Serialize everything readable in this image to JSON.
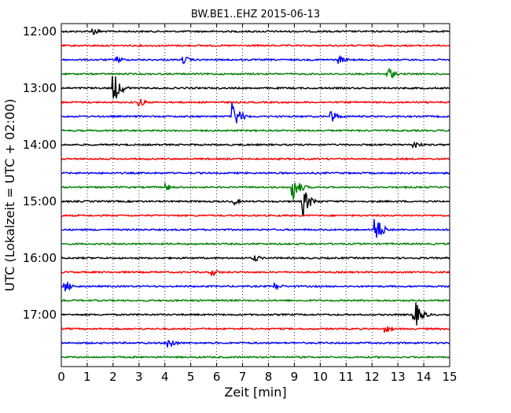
{
  "chart_data": {
    "type": "line",
    "title": "BW.BE1..EHZ 2015-06-13",
    "xlabel": "Zeit  [min]",
    "ylabel": "UTC (Lokalzeit = UTC + 02:00)",
    "xlim": [
      0,
      15
    ],
    "x_ticks": [
      0,
      1,
      2,
      3,
      4,
      5,
      6,
      7,
      8,
      9,
      10,
      11,
      12,
      13,
      14,
      15
    ],
    "y_tick_labels": [
      "12:00",
      "13:00",
      "14:00",
      "15:00",
      "16:00",
      "17:00"
    ],
    "grid": "vertical dotted at each minute",
    "trace_colors": [
      "#000000",
      "#ff0000",
      "#0000ff",
      "#008000"
    ],
    "trace_start_times": [
      "12:00",
      "12:15",
      "12:30",
      "12:45",
      "13:00",
      "13:15",
      "13:30",
      "13:45",
      "14:00",
      "14:15",
      "14:30",
      "14:45",
      "15:00",
      "15:15",
      "15:30",
      "15:45",
      "16:00",
      "16:15",
      "16:30",
      "16:45",
      "17:00",
      "17:15",
      "17:30",
      "17:45"
    ],
    "events": [
      {
        "trace": "12:00",
        "minute": 1.2,
        "amplitude": "small"
      },
      {
        "trace": "12:30",
        "minute": 2.1,
        "amplitude": "small"
      },
      {
        "trace": "12:30",
        "minute": 4.7,
        "amplitude": "small"
      },
      {
        "trace": "12:30",
        "minute": 10.7,
        "amplitude": "small"
      },
      {
        "trace": "12:45",
        "minute": 12.6,
        "amplitude": "medium"
      },
      {
        "trace": "13:00",
        "minute": 2.0,
        "amplitude": "large"
      },
      {
        "trace": "13:15",
        "minute": 3.0,
        "amplitude": "small"
      },
      {
        "trace": "13:30",
        "minute": 6.6,
        "amplitude": "large"
      },
      {
        "trace": "13:30",
        "minute": 10.4,
        "amplitude": "medium"
      },
      {
        "trace": "14:00",
        "minute": 13.6,
        "amplitude": "small"
      },
      {
        "trace": "14:45",
        "minute": 8.9,
        "amplitude": "large"
      },
      {
        "trace": "14:45",
        "minute": 4.0,
        "amplitude": "small"
      },
      {
        "trace": "15:00",
        "minute": 9.3,
        "amplitude": "large"
      },
      {
        "trace": "15:00",
        "minute": 6.6,
        "amplitude": "small"
      },
      {
        "trace": "15:30",
        "minute": 12.1,
        "amplitude": "large"
      },
      {
        "trace": "16:00",
        "minute": 7.4,
        "amplitude": "small"
      },
      {
        "trace": "16:15",
        "minute": 5.8,
        "amplitude": "small"
      },
      {
        "trace": "16:30",
        "minute": 0.1,
        "amplitude": "medium"
      },
      {
        "trace": "16:30",
        "minute": 8.2,
        "amplitude": "small"
      },
      {
        "trace": "17:00",
        "minute": 13.6,
        "amplitude": "large"
      },
      {
        "trace": "17:15",
        "minute": 12.5,
        "amplitude": "small"
      },
      {
        "trace": "17:30",
        "minute": 4.1,
        "amplitude": "medium"
      }
    ]
  }
}
